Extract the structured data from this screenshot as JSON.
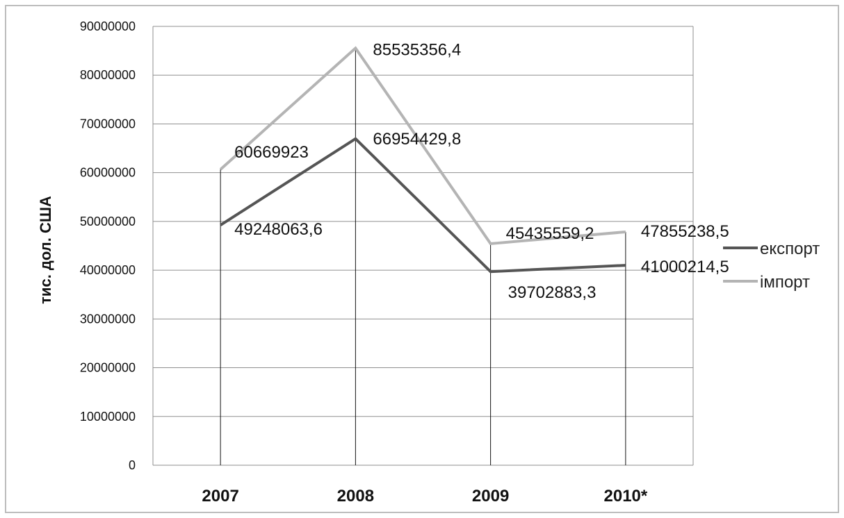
{
  "chart_data": {
    "type": "line",
    "categories": [
      "2007",
      "2008",
      "2009",
      "2010*"
    ],
    "series": [
      {
        "name": "експорт",
        "values": [
          49248063.6,
          66954429.8,
          39702883.3,
          41000214.5
        ],
        "labels": [
          "49248063,6",
          "66954429,8",
          "39702883,3",
          "41000214,5"
        ],
        "color": "#555555"
      },
      {
        "name": "імпорт",
        "values": [
          60669923,
          85535356.4,
          45435559.2,
          47855238.5
        ],
        "labels": [
          "60669923",
          "85535356,4",
          "45435559,2",
          "47855238,5"
        ],
        "color": "#b4b4b4"
      }
    ],
    "ylabel": "тис. дол. США",
    "xlabel": "",
    "ylim": [
      0,
      90000000
    ],
    "yticks": [
      "0",
      "10000000",
      "20000000",
      "30000000",
      "40000000",
      "50000000",
      "60000000",
      "70000000",
      "80000000",
      "90000000"
    ],
    "grid": "horizontal",
    "legend": "right"
  }
}
